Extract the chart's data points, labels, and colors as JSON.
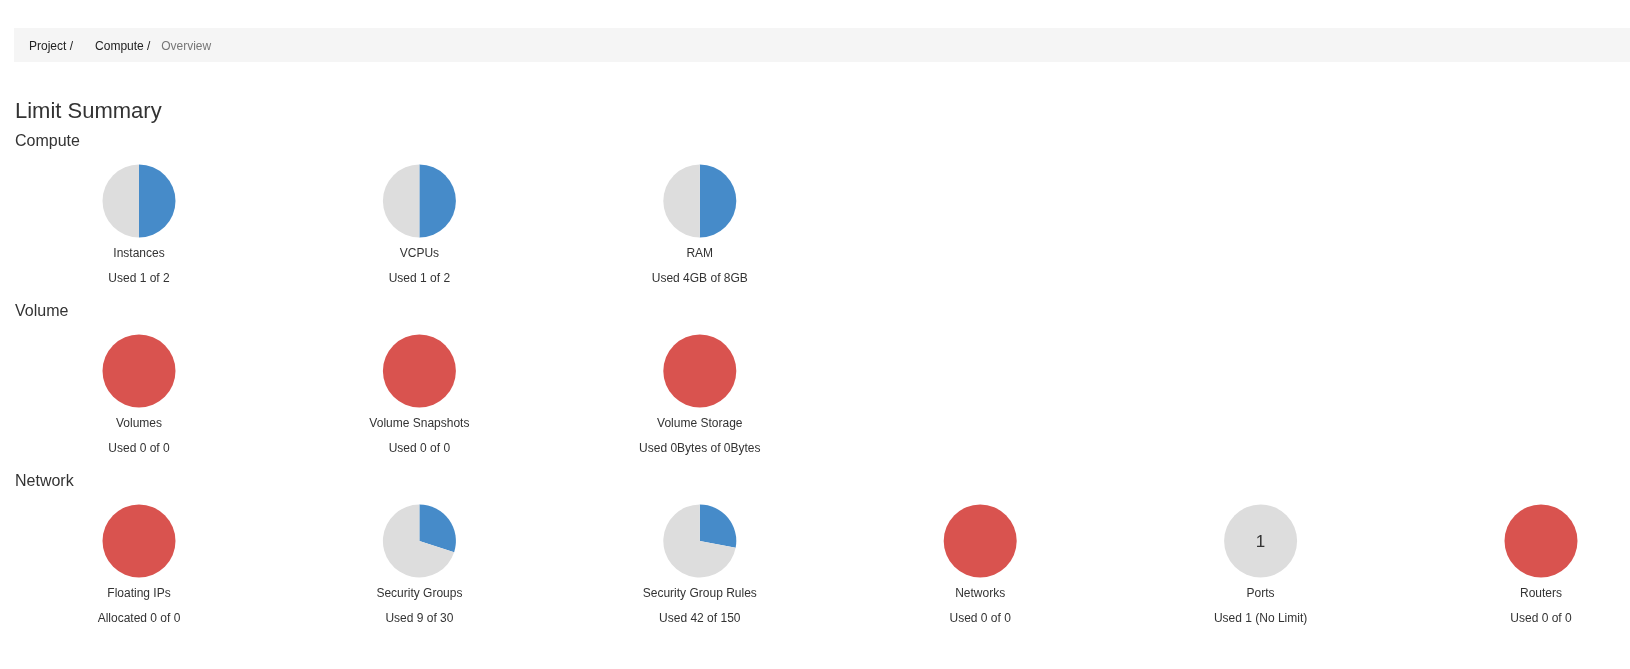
{
  "chart_data": [
    {
      "type": "pie",
      "title": "Instances",
      "subtitle": "Used 1 of 2",
      "categories": [
        null,
        null
      ],
      "values": [
        50,
        50
      ],
      "colors": [
        "#468bc9",
        "#dddddd"
      ],
      "annotations": [
        "Project /",
        "Compute /",
        "Overview",
        "Limit Summary",
        "Compute"
      ]
    },
    {
      "type": "pie",
      "title": "VCPUs",
      "subtitle": "Used 1 of 2",
      "categories": [
        null,
        null
      ],
      "values": [
        50,
        50
      ],
      "colors": [
        "#468bc9",
        "#dddddd"
      ]
    },
    {
      "type": "pie",
      "title": "RAM",
      "subtitle": "Used 4GB of 8GB",
      "categories": [
        null,
        null
      ],
      "values": [
        50,
        50
      ],
      "colors": [
        "#468bc9",
        "#dddddd"
      ]
    },
    {
      "type": "pie",
      "title": "Volumes",
      "subtitle": "Used 0 of 0",
      "categories": [
        null
      ],
      "values": [
        100
      ],
      "colors": [
        "#d9534f"
      ],
      "annotations": [
        "Volume"
      ]
    },
    {
      "type": "pie",
      "title": "Volume Snapshots",
      "subtitle": "Used 0 of 0",
      "categories": [
        null
      ],
      "values": [
        100
      ],
      "colors": [
        "#d9534f"
      ]
    },
    {
      "type": "pie",
      "title": "Volume Storage",
      "subtitle": "Used 0Bytes of 0Bytes",
      "categories": [
        null
      ],
      "values": [
        100
      ],
      "colors": [
        "#d9534f"
      ]
    },
    {
      "type": "pie",
      "title": "Floating IPs",
      "subtitle": "Allocated 0 of 0",
      "categories": [
        null
      ],
      "values": [
        100
      ],
      "colors": [
        "#d9534f"
      ],
      "annotations": [
        "Network"
      ]
    },
    {
      "type": "pie",
      "title": "Security Groups",
      "subtitle": "Used 9 of 30",
      "categories": [
        null,
        null
      ],
      "values": [
        30,
        70
      ],
      "colors": [
        "#468bc9",
        "#dddddd"
      ]
    },
    {
      "type": "pie",
      "title": "Security Group Rules",
      "subtitle": "Used 42 of 150",
      "categories": [
        null,
        null
      ],
      "values": [
        28,
        72
      ],
      "colors": [
        "#468bc9",
        "#dddddd"
      ]
    },
    {
      "type": "pie",
      "title": "Networks",
      "subtitle": "Used 0 of 0",
      "categories": [
        null
      ],
      "values": [
        100
      ],
      "colors": [
        "#d9534f"
      ]
    },
    {
      "type": "pie",
      "title": "Ports",
      "subtitle": "Used 1 (No Limit)",
      "categories": [
        null
      ],
      "values": [
        1
      ],
      "colors": [
        "#dddddd"
      ],
      "data_labels": true
    },
    {
      "type": "pie",
      "title": "Routers",
      "subtitle": "Used 0 of 0",
      "categories": [
        null
      ],
      "values": [
        100
      ],
      "colors": [
        "#d9534f"
      ]
    }
  ]
}
